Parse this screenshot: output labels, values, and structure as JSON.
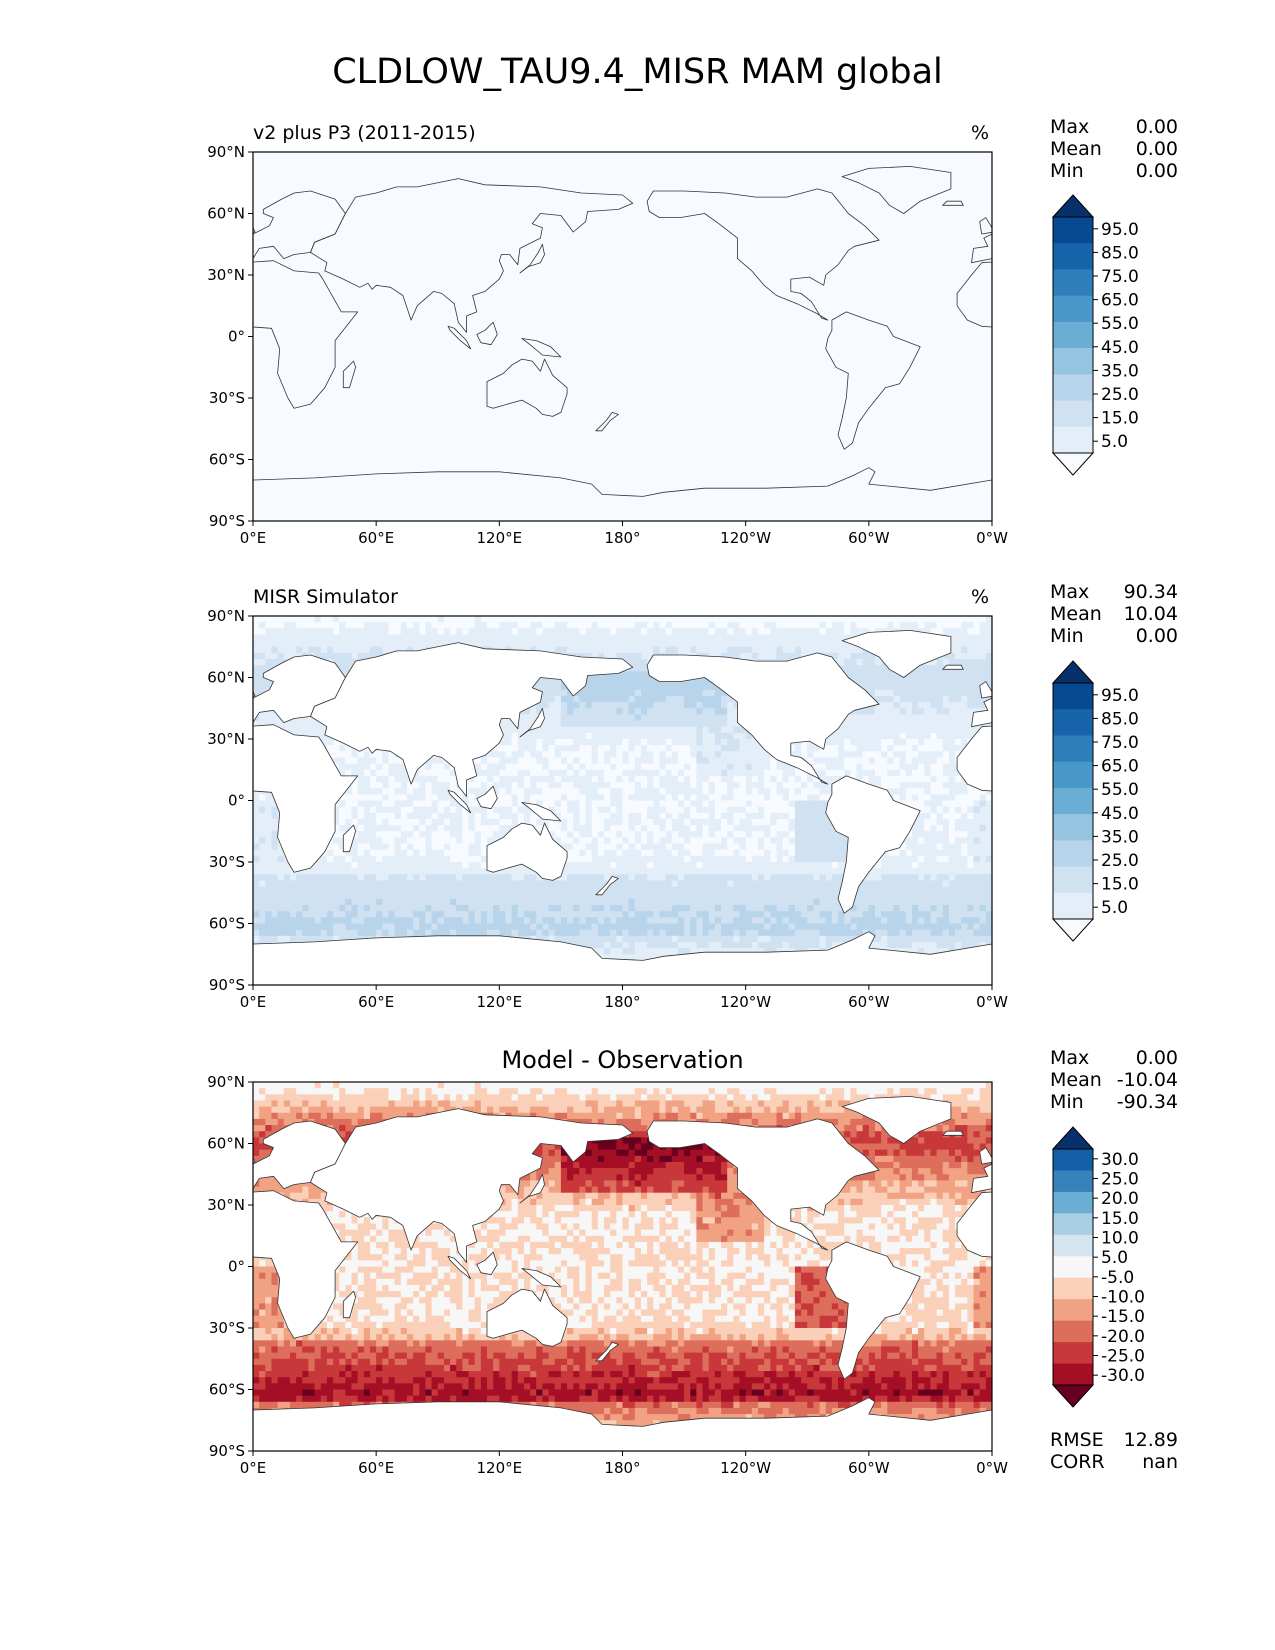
{
  "figure_title": "CLDLOW_TAU9.4_MISR MAM global",
  "colors": {
    "blues": [
      "#f7fbff",
      "#e3eef9",
      "#d0e1f2",
      "#b7d4ea",
      "#94c4df",
      "#6aaed6",
      "#4a98c9",
      "#2e7ebc",
      "#1764ab",
      "#084a91",
      "#08306b"
    ],
    "diff": [
      "#67001f",
      "#a50f26",
      "#c8383a",
      "#de6e5c",
      "#f0a283",
      "#fbd0b9",
      "#f7f7f7",
      "#d6e6f1",
      "#a9cfe5",
      "#6aaed6",
      "#3882bb",
      "#1460a8",
      "#08306b"
    ],
    "coast": "#333333"
  },
  "chart_data": [
    {
      "type": "heatmap",
      "title": "v2 plus P3 (2011-2015)",
      "unit": "%",
      "xlabel": "",
      "ylabel": "",
      "x_ticks": [
        "0°E",
        "60°E",
        "120°E",
        "180°",
        "120°W",
        "60°W",
        "0°W"
      ],
      "y_ticks": [
        "90°N",
        "60°N",
        "30°N",
        "0°",
        "30°S",
        "60°S",
        "90°S"
      ],
      "stats": [
        {
          "label": "Max",
          "value": "0.00"
        },
        {
          "label": "Mean",
          "value": "0.00"
        },
        {
          "label": "Min",
          "value": "0.00"
        }
      ],
      "colorbar_levels": [
        "95.0",
        "85.0",
        "75.0",
        "65.0",
        "55.0",
        "45.0",
        "35.0",
        "25.0",
        "15.0",
        "5.0"
      ],
      "field": "uniform-zero"
    },
    {
      "type": "heatmap",
      "title": "MISR Simulator",
      "unit": "%",
      "xlabel": "",
      "ylabel": "",
      "x_ticks": [
        "0°E",
        "60°E",
        "120°E",
        "180°",
        "120°W",
        "60°W",
        "0°W"
      ],
      "y_ticks": [
        "90°N",
        "60°N",
        "30°N",
        "0°",
        "30°S",
        "60°S",
        "90°S"
      ],
      "stats": [
        {
          "label": "Max",
          "value": "90.34"
        },
        {
          "label": "Mean",
          "value": "10.04"
        },
        {
          "label": "Min",
          "value": "0.00"
        }
      ],
      "colorbar_levels": [
        "95.0",
        "85.0",
        "75.0",
        "65.0",
        "55.0",
        "45.0",
        "35.0",
        "25.0",
        "15.0",
        "5.0"
      ],
      "field": "observed-low-cloud"
    },
    {
      "type": "heatmap",
      "title": "Model - Observation",
      "unit": "",
      "xlabel": "",
      "ylabel": "",
      "x_ticks": [
        "0°E",
        "60°E",
        "120°E",
        "180°",
        "120°W",
        "60°W",
        "0°W"
      ],
      "y_ticks": [
        "90°N",
        "60°N",
        "30°N",
        "0°",
        "30°S",
        "60°S",
        "90°S"
      ],
      "stats": [
        {
          "label": "Max",
          "value": "0.00"
        },
        {
          "label": "Mean",
          "value": "-10.04"
        },
        {
          "label": "Min",
          "value": "-90.34"
        }
      ],
      "colorbar_levels": [
        "30.0",
        "25.0",
        "20.0",
        "15.0",
        "10.0",
        "5.0",
        "-5.0",
        "-10.0",
        "-15.0",
        "-20.0",
        "-25.0",
        "-30.0"
      ],
      "metrics": [
        {
          "label": "RMSE",
          "value": "12.89"
        },
        {
          "label": "CORR",
          "value": "nan"
        }
      ],
      "field": "difference"
    }
  ]
}
